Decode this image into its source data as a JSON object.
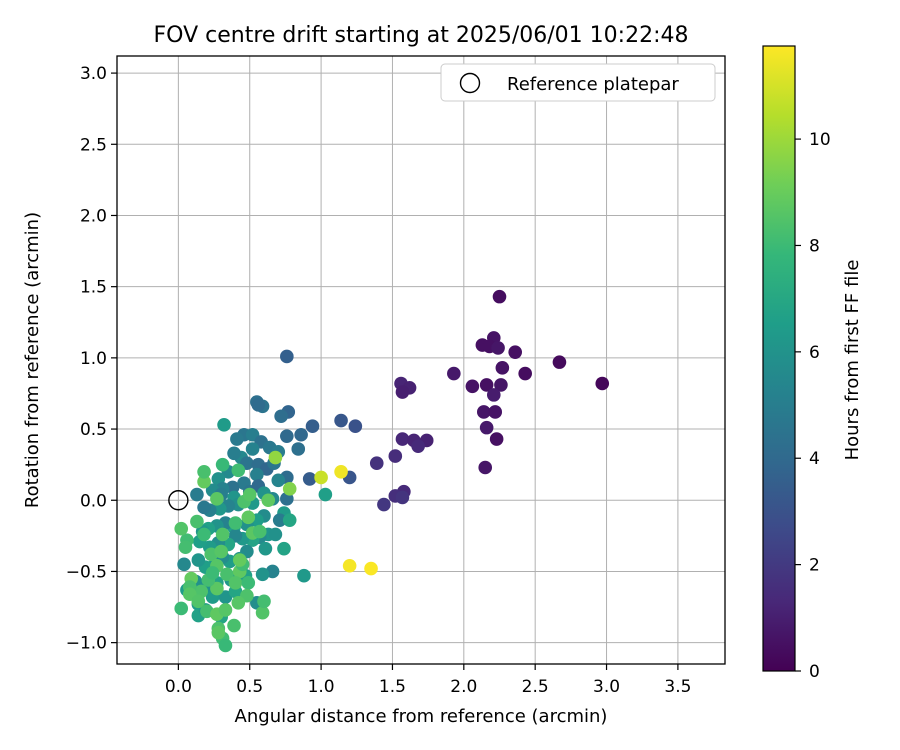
{
  "chart_data": {
    "type": "scatter",
    "title": "FOV centre drift starting at 2025/06/01 10:22:48",
    "xlabel": "Angular distance from reference (arcmin)",
    "ylabel": "Rotation from reference (arcmin)",
    "xlim": [
      -0.43,
      3.83
    ],
    "ylim": [
      -1.15,
      3.12
    ],
    "xticks": [
      "0.0",
      "0.5",
      "1.0",
      "1.5",
      "2.0",
      "2.5",
      "3.0",
      "3.5"
    ],
    "xtick_values": [
      0,
      0.5,
      1,
      1.5,
      2,
      2.5,
      3,
      3.5
    ],
    "yticks": [
      "−1.0",
      "−0.5",
      "0.0",
      "0.5",
      "1.0",
      "1.5",
      "2.0",
      "2.5",
      "3.0"
    ],
    "ytick_values": [
      -1,
      -0.5,
      0,
      0.5,
      1,
      1.5,
      2,
      2.5,
      3
    ],
    "grid": true,
    "legend": {
      "placement": "top-right",
      "entries": [
        "Reference platepar"
      ]
    },
    "reference_point": {
      "name": "Reference platepar",
      "x": 0.0,
      "y": 0.0
    },
    "colorbar": {
      "label": "Hours from first FF file",
      "colormap": "viridis",
      "range": [
        0,
        11.75
      ],
      "ticks": [
        "0",
        "2",
        "4",
        "6",
        "8",
        "10"
      ],
      "tick_values": [
        0,
        2,
        4,
        6,
        8,
        10
      ],
      "colors": [
        "#440154",
        "#482878",
        "#3e4989",
        "#31688e",
        "#26828e",
        "#1f9e89",
        "#35b779",
        "#6ece58",
        "#b5de2b",
        "#fde725"
      ]
    },
    "series": [
      {
        "points": [
          [
            2.25,
            1.43,
            0.4
          ],
          [
            2.13,
            1.09,
            0.5
          ],
          [
            2.21,
            1.14,
            0.6
          ],
          [
            2.18,
            1.08,
            0.5
          ],
          [
            2.24,
            1.07,
            0.7
          ],
          [
            2.36,
            1.04,
            0.5
          ],
          [
            2.67,
            0.97,
            0.3
          ],
          [
            2.27,
            0.93,
            0.6
          ],
          [
            2.43,
            0.89,
            0.4
          ],
          [
            1.93,
            0.89,
            0.8
          ],
          [
            2.97,
            0.82,
            0.2
          ],
          [
            2.16,
            0.81,
            0.5
          ],
          [
            2.26,
            0.81,
            0.7
          ],
          [
            2.06,
            0.8,
            0.6
          ],
          [
            1.56,
            0.82,
            1.2
          ],
          [
            1.62,
            0.79,
            1.1
          ],
          [
            1.57,
            0.76,
            1.0
          ],
          [
            2.21,
            0.74,
            0.9
          ],
          [
            2.14,
            0.62,
            0.7
          ],
          [
            2.22,
            0.62,
            0.6
          ],
          [
            2.16,
            0.51,
            0.8
          ],
          [
            2.23,
            0.43,
            0.5
          ],
          [
            1.57,
            0.43,
            1.3
          ],
          [
            1.65,
            0.42,
            1.2
          ],
          [
            1.74,
            0.42,
            1.1
          ],
          [
            1.68,
            0.38,
            1.4
          ],
          [
            1.52,
            0.31,
            1.5
          ],
          [
            1.39,
            0.26,
            1.7
          ],
          [
            2.15,
            0.23,
            0.7
          ],
          [
            1.58,
            0.06,
            1.4
          ],
          [
            1.52,
            0.03,
            1.6
          ],
          [
            1.57,
            0.02,
            1.8
          ],
          [
            1.44,
            -0.03,
            1.9
          ],
          [
            0.76,
            1.01,
            3.6
          ],
          [
            0.55,
            0.69,
            4.3
          ],
          [
            0.59,
            0.66,
            4.5
          ],
          [
            0.56,
            0.67,
            4.1
          ],
          [
            0.77,
            0.62,
            3.8
          ],
          [
            0.72,
            0.59,
            4.2
          ],
          [
            1.14,
            0.56,
            3.2
          ],
          [
            1.24,
            0.52,
            3.0
          ],
          [
            0.94,
            0.52,
            3.5
          ],
          [
            0.86,
            0.46,
            3.9
          ],
          [
            0.76,
            0.45,
            4.0
          ],
          [
            0.46,
            0.46,
            4.6
          ],
          [
            0.52,
            0.46,
            5.0
          ],
          [
            0.58,
            0.41,
            4.4
          ],
          [
            0.41,
            0.43,
            4.8
          ],
          [
            0.64,
            0.37,
            4.7
          ],
          [
            0.7,
            0.34,
            4.9
          ],
          [
            0.84,
            0.36,
            4.3
          ],
          [
            0.52,
            0.36,
            5.2
          ],
          [
            0.44,
            0.3,
            5.5
          ],
          [
            0.39,
            0.33,
            5.0
          ],
          [
            0.48,
            0.26,
            4.5
          ],
          [
            0.56,
            0.25,
            4.2
          ],
          [
            0.62,
            0.22,
            3.9
          ],
          [
            0.67,
            0.26,
            4.6
          ],
          [
            0.92,
            0.15,
            3.4
          ],
          [
            1.2,
            0.16,
            3.1
          ],
          [
            0.76,
            0.16,
            4.1
          ],
          [
            0.7,
            0.14,
            5.3
          ],
          [
            0.55,
            0.18,
            5.1
          ],
          [
            0.35,
            0.2,
            5.6
          ],
          [
            0.28,
            0.15,
            5.9
          ],
          [
            0.46,
            0.12,
            4.8
          ],
          [
            0.38,
            0.09,
            4.4
          ],
          [
            0.31,
            0.08,
            5.2
          ],
          [
            0.24,
            0.07,
            5.7
          ],
          [
            0.3,
            0.04,
            5.0
          ],
          [
            0.13,
            0.04,
            4.9
          ],
          [
            0.39,
            0.02,
            6.1
          ],
          [
            0.5,
            0.06,
            4.5
          ],
          [
            0.56,
            0.1,
            4.0
          ],
          [
            0.6,
            0.05,
            6.0
          ],
          [
            0.76,
            0.01,
            4.3
          ],
          [
            0.66,
            0.01,
            5.5
          ],
          [
            0.52,
            -0.02,
            6.3
          ],
          [
            0.42,
            -0.03,
            5.8
          ],
          [
            0.35,
            -0.04,
            5.3
          ],
          [
            0.29,
            -0.06,
            6.2
          ],
          [
            0.22,
            -0.07,
            5.1
          ],
          [
            0.18,
            -0.05,
            4.7
          ],
          [
            0.74,
            -0.09,
            6.4
          ],
          [
            0.71,
            -0.14,
            4.9
          ],
          [
            0.6,
            -0.11,
            5.7
          ],
          [
            0.55,
            -0.14,
            6.5
          ],
          [
            0.48,
            -0.17,
            5.9
          ],
          [
            0.39,
            -0.19,
            6.6
          ],
          [
            0.33,
            -0.16,
            5.2
          ],
          [
            0.27,
            -0.18,
            6.0
          ],
          [
            0.21,
            -0.2,
            6.7
          ],
          [
            0.17,
            -0.22,
            6.2
          ],
          [
            0.63,
            -0.24,
            6.1
          ],
          [
            0.57,
            -0.26,
            5.6
          ],
          [
            0.52,
            -0.28,
            6.8
          ],
          [
            0.45,
            -0.27,
            6.3
          ],
          [
            0.4,
            -0.25,
            5.4
          ],
          [
            0.35,
            -0.31,
            6.9
          ],
          [
            0.28,
            -0.3,
            5.8
          ],
          [
            0.22,
            -0.33,
            6.4
          ],
          [
            0.15,
            -0.29,
            6.6
          ],
          [
            0.68,
            -0.24,
            5.9
          ],
          [
            0.61,
            -0.34,
            6.2
          ],
          [
            0.48,
            -0.36,
            5.7
          ],
          [
            0.43,
            -0.41,
            6.0
          ],
          [
            0.36,
            -0.43,
            6.5
          ],
          [
            0.31,
            -0.4,
            5.8
          ],
          [
            0.25,
            -0.46,
            6.3
          ],
          [
            0.19,
            -0.47,
            6.6
          ],
          [
            0.14,
            -0.42,
            6.1
          ],
          [
            0.04,
            -0.45,
            5.5
          ],
          [
            0.66,
            -0.5,
            5.2
          ],
          [
            0.59,
            -0.52,
            6.0
          ],
          [
            0.47,
            -0.53,
            6.7
          ],
          [
            0.37,
            -0.56,
            6.2
          ],
          [
            0.27,
            -0.58,
            6.8
          ],
          [
            0.2,
            -0.6,
            6.0
          ],
          [
            0.12,
            -0.57,
            5.9
          ],
          [
            0.24,
            -0.68,
            6.4
          ],
          [
            0.33,
            -0.68,
            6.1
          ],
          [
            0.4,
            -0.64,
            6.9
          ],
          [
            0.55,
            -0.72,
            5.8
          ],
          [
            0.88,
            -0.53,
            6.3
          ],
          [
            0.74,
            -0.34,
            6.8
          ],
          [
            0.78,
            -0.14,
            6.9
          ],
          [
            1.03,
            0.04,
            6.6
          ],
          [
            0.32,
            0.53,
            6.4
          ],
          [
            0.14,
            -0.73,
            6.5
          ],
          [
            0.14,
            -0.81,
            6.7
          ],
          [
            0.19,
            -0.77,
            6.3
          ],
          [
            0.3,
            -0.82,
            6.9
          ],
          [
            0.06,
            -0.63,
            6.5
          ],
          [
            0.13,
            -0.15,
            8.3
          ],
          [
            0.06,
            -0.28,
            8.1
          ],
          [
            0.02,
            -0.2,
            8.5
          ],
          [
            0.05,
            -0.33,
            8.2
          ],
          [
            0.18,
            -0.24,
            8.0
          ],
          [
            0.23,
            -0.38,
            8.4
          ],
          [
            0.27,
            -0.46,
            8.6
          ],
          [
            0.34,
            -0.52,
            8.3
          ],
          [
            0.43,
            -0.5,
            8.8
          ],
          [
            0.45,
            -0.45,
            8.1
          ],
          [
            0.4,
            -0.58,
            8.5
          ],
          [
            0.27,
            -0.62,
            8.7
          ],
          [
            0.21,
            -0.56,
            8.2
          ],
          [
            0.16,
            -0.64,
            8.4
          ],
          [
            0.09,
            -0.55,
            8.9
          ],
          [
            0.08,
            -0.61,
            8.3
          ],
          [
            0.02,
            -0.76,
            8.0
          ],
          [
            0.08,
            -0.66,
            8.6
          ],
          [
            0.14,
            -0.71,
            8.5
          ],
          [
            0.2,
            -0.78,
            8.2
          ],
          [
            0.27,
            -0.8,
            8.8
          ],
          [
            0.28,
            -0.9,
            8.4
          ],
          [
            0.31,
            -0.97,
            8.1
          ],
          [
            0.33,
            -0.77,
            8.6
          ],
          [
            0.39,
            -0.88,
            8.3
          ],
          [
            0.28,
            -0.93,
            8.7
          ],
          [
            0.33,
            -1.02,
            7.9
          ],
          [
            0.43,
            -0.42,
            8.9
          ],
          [
            0.49,
            -0.58,
            8.0
          ],
          [
            0.59,
            -0.79,
            8.5
          ],
          [
            0.6,
            -0.71,
            8.2
          ],
          [
            0.48,
            -0.67,
            8.4
          ],
          [
            0.42,
            -0.72,
            8.6
          ],
          [
            0.52,
            -0.23,
            8.7
          ],
          [
            0.57,
            -0.22,
            8.3
          ],
          [
            0.49,
            -0.12,
            8.8
          ],
          [
            0.46,
            -0.01,
            8.4
          ],
          [
            0.4,
            -0.16,
            8.1
          ],
          [
            0.3,
            -0.36,
            8.6
          ],
          [
            0.24,
            -0.51,
            8.0
          ],
          [
            0.31,
            -0.24,
            8.5
          ],
          [
            0.27,
            0.01,
            8.7
          ],
          [
            0.18,
            0.13,
            8.9
          ],
          [
            0.18,
            0.2,
            8.3
          ],
          [
            0.31,
            0.25,
            7.9
          ],
          [
            0.42,
            0.21,
            8.1
          ],
          [
            0.5,
            0.04,
            8.6
          ],
          [
            0.63,
            0.0,
            8.8
          ],
          [
            0.78,
            0.08,
            9.5
          ],
          [
            0.68,
            0.3,
            9.8
          ],
          [
            1.14,
            0.2,
            11.5
          ],
          [
            1.0,
            0.16,
            10.8
          ],
          [
            1.2,
            -0.46,
            11.6
          ],
          [
            1.35,
            -0.48,
            11.7
          ]
        ]
      }
    ]
  }
}
